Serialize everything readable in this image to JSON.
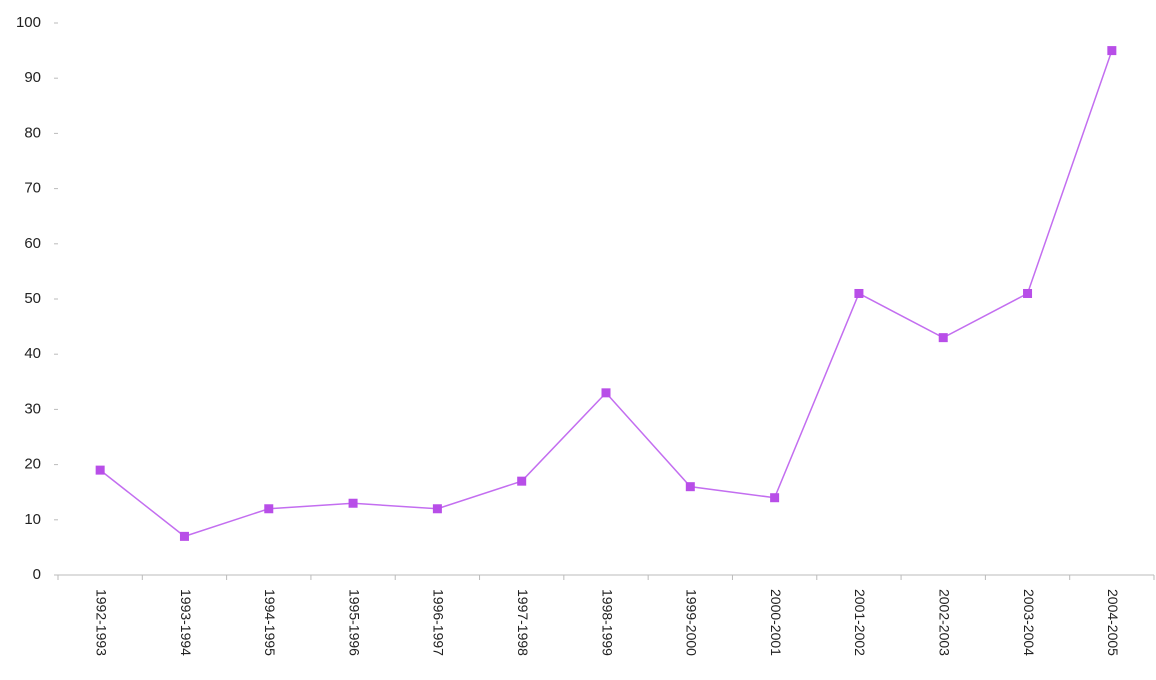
{
  "chart_data": {
    "type": "line",
    "categories": [
      "1992-1993",
      "1993-1994",
      "1994-1995",
      "1995-1996",
      "1996-1997",
      "1997-1998",
      "1998-1999",
      "1999-2000",
      "2000-2001",
      "2001-2002",
      "2002-2003",
      "2003-2004",
      "2004-2005"
    ],
    "values": [
      19,
      7,
      12,
      13,
      12,
      17,
      33,
      16,
      14,
      51,
      43,
      51,
      95
    ],
    "color": "#c36ef0",
    "marker_color": "#b84ee8",
    "ylim": [
      0,
      100
    ],
    "yticks": [
      0,
      10,
      20,
      30,
      40,
      50,
      60,
      70,
      80,
      90,
      100
    ],
    "grid": false
  }
}
